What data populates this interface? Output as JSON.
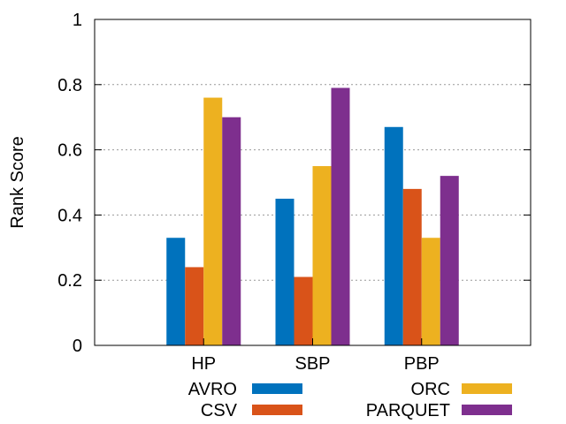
{
  "chart_data": {
    "type": "bar",
    "categories": [
      "HP",
      "SBP",
      "PBP"
    ],
    "series": [
      {
        "name": "AVRO",
        "values": [
          0.33,
          0.45,
          0.67
        ],
        "color": "#0072bd"
      },
      {
        "name": "CSV",
        "values": [
          0.24,
          0.21,
          0.48
        ],
        "color": "#d95319"
      },
      {
        "name": "ORC",
        "values": [
          0.76,
          0.55,
          0.33
        ],
        "color": "#edb120"
      },
      {
        "name": "PARQUET",
        "values": [
          0.7,
          0.79,
          0.52
        ],
        "color": "#7e2f8e"
      }
    ],
    "ylabel": "Rank Score",
    "xlabel": "",
    "ylim": [
      0,
      1
    ],
    "yticks": [
      0,
      0.2,
      0.4,
      0.6,
      0.8,
      1
    ],
    "ytick_labels": [
      "0",
      "0.2",
      "0.4",
      "0.6",
      "0.8",
      "1"
    ],
    "grid": "horizontal dotted",
    "legend_position": "bottom"
  }
}
